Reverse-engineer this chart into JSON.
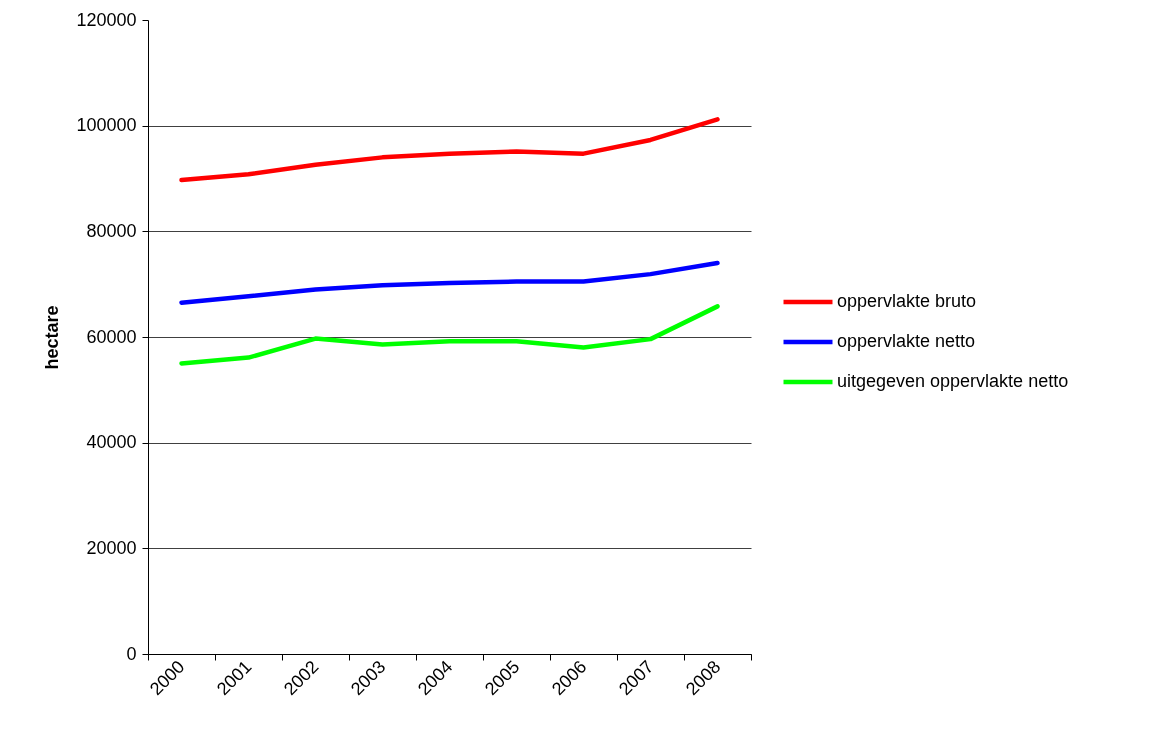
{
  "chart_data": {
    "type": "line",
    "ylabel": "hectare",
    "categories": [
      "2000",
      "2001",
      "2002",
      "2003",
      "2004",
      "2005",
      "2006",
      "2007",
      "2008"
    ],
    "series": [
      {
        "name": "oppervlakte bruto",
        "color": "#ff0000",
        "values": [
          89700,
          90800,
          92600,
          94000,
          94700,
          95100,
          94700,
          97300,
          101200
        ]
      },
      {
        "name": "oppervlakte netto",
        "color": "#0000ff",
        "values": [
          66500,
          67700,
          69000,
          69800,
          70200,
          70500,
          70500,
          71900,
          74000
        ]
      },
      {
        "name": "uitgegeven oppervlakte netto",
        "color": "#00ff00",
        "values": [
          55000,
          56100,
          59700,
          58600,
          59200,
          59200,
          58000,
          59600,
          65800
        ]
      }
    ],
    "ylim": [
      0,
      120000
    ],
    "yticks": [
      0,
      20000,
      40000,
      60000,
      80000,
      100000,
      120000
    ],
    "grid": "y",
    "legend": "right",
    "marker": "none",
    "line_style": "solid"
  }
}
